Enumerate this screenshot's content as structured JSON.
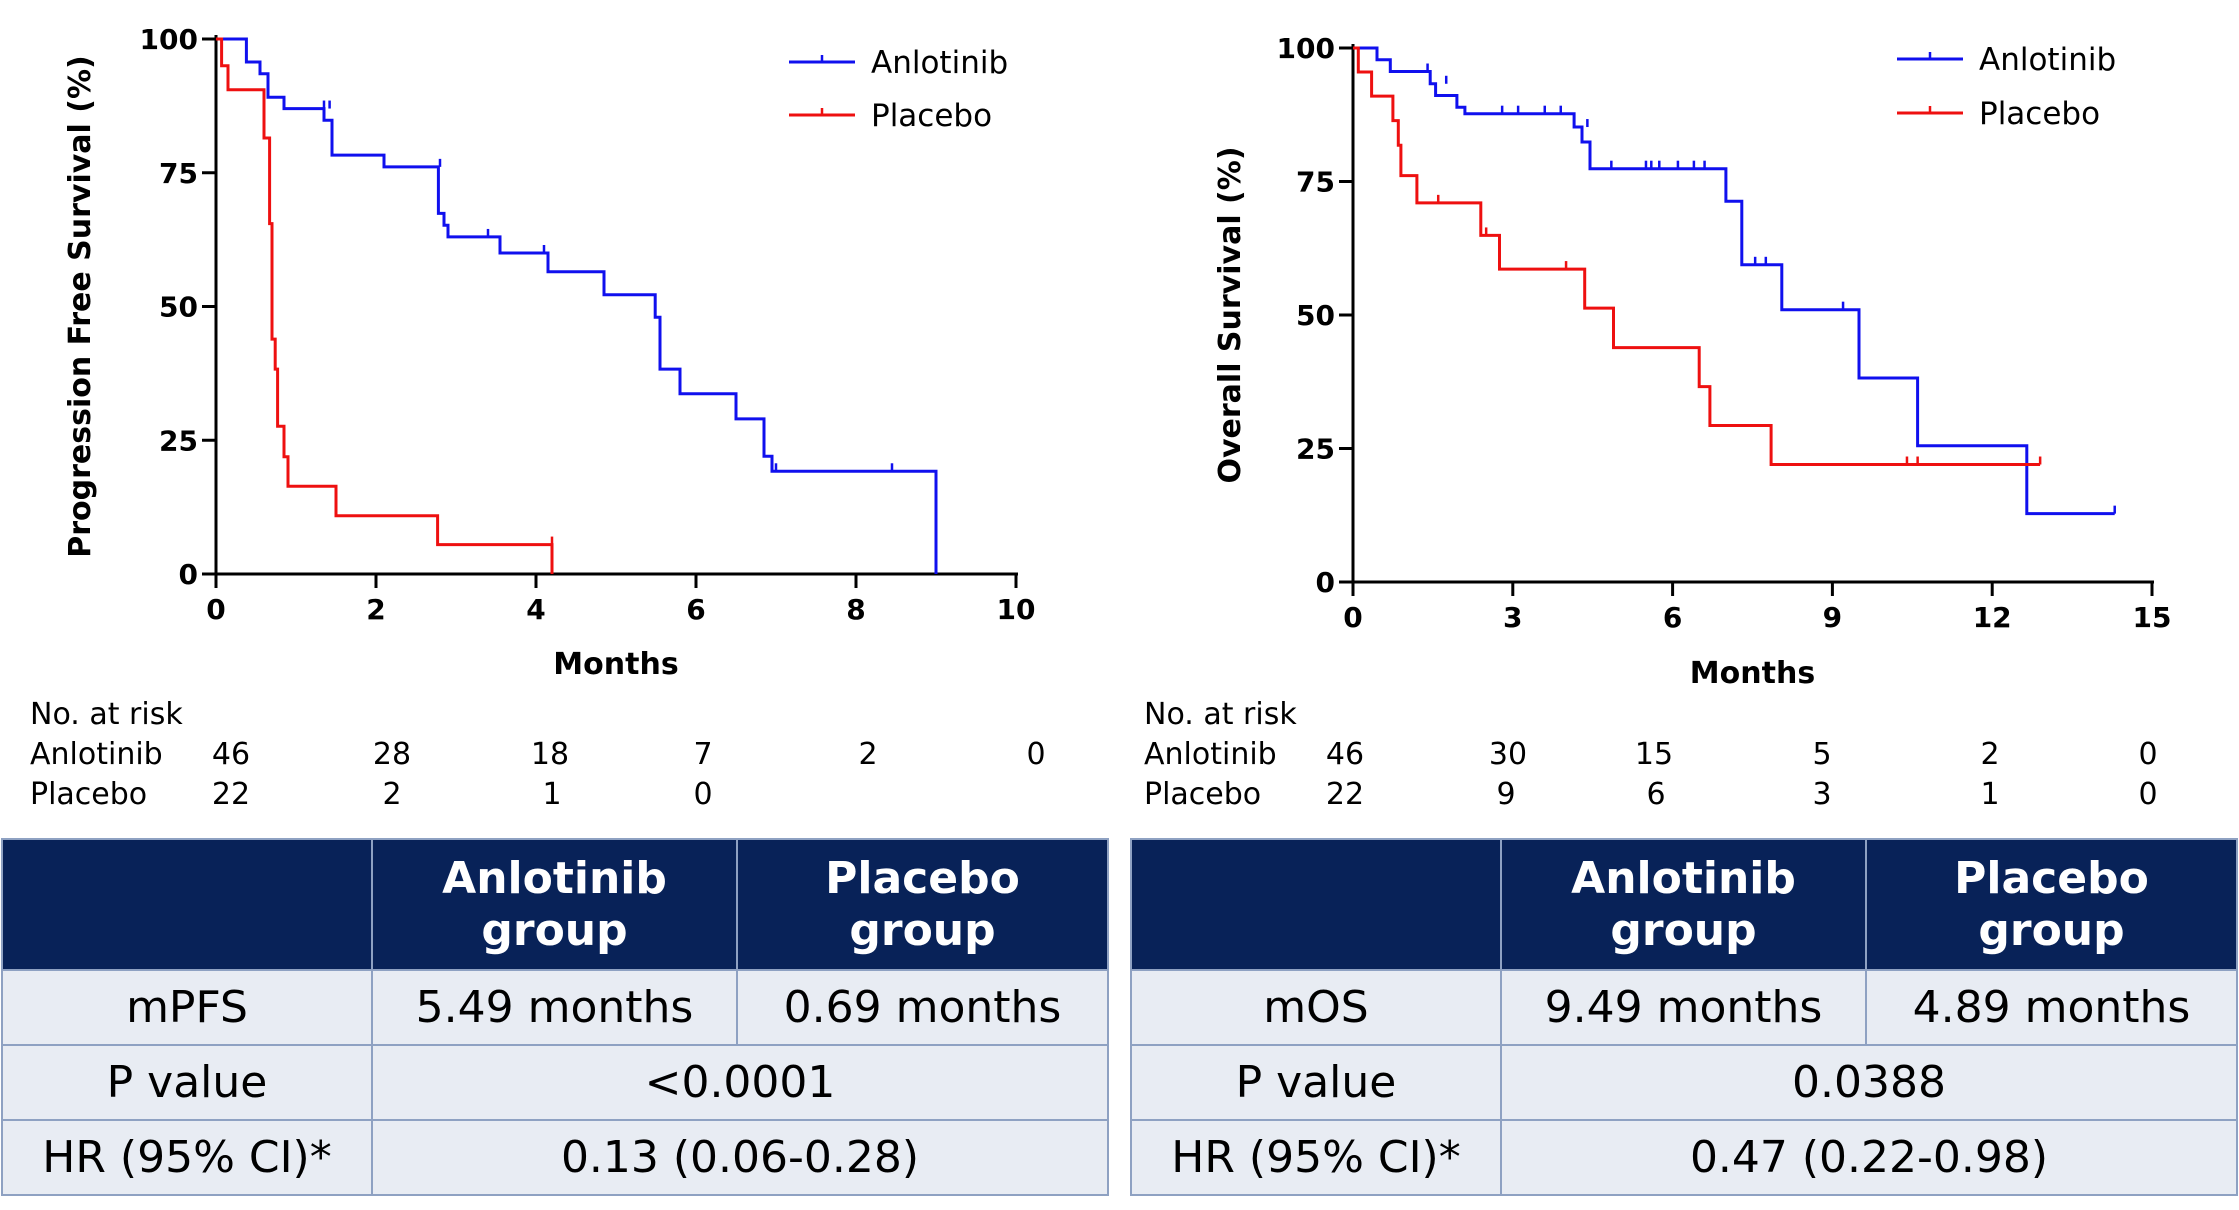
{
  "chart_data": [
    {
      "type": "line",
      "subtype": "kaplan-meier",
      "ylabel": "Progression Free Survival (%)",
      "xlabel": "Months",
      "xlim": [
        0,
        10
      ],
      "ylim": [
        0,
        100
      ],
      "xticks": [
        "0",
        "2",
        "4",
        "6",
        "8",
        "10"
      ],
      "yticks": [
        "0",
        "25",
        "50",
        "75",
        "100"
      ],
      "legend_position": "top-right",
      "series": [
        {
          "name": "Anlotinib",
          "color": "#1010ee",
          "steps": [
            [
              0,
              100
            ],
            [
              0.38,
              100
            ],
            [
              0.38,
              95.7
            ],
            [
              0.55,
              95.7
            ],
            [
              0.55,
              93.5
            ],
            [
              0.65,
              93.5
            ],
            [
              0.65,
              89.1
            ],
            [
              0.85,
              89.1
            ],
            [
              0.85,
              87
            ],
            [
              1.35,
              87
            ],
            [
              1.35,
              84.8
            ],
            [
              1.45,
              84.8
            ],
            [
              1.45,
              78.3
            ],
            [
              2.1,
              78.3
            ],
            [
              2.1,
              76.1
            ],
            [
              2.78,
              76.1
            ],
            [
              2.78,
              67.4
            ],
            [
              2.85,
              67.4
            ],
            [
              2.85,
              65.2
            ],
            [
              2.9,
              65.2
            ],
            [
              2.9,
              63
            ],
            [
              3.55,
              63
            ],
            [
              3.55,
              60
            ],
            [
              4.15,
              60
            ],
            [
              4.15,
              56.5
            ],
            [
              4.85,
              56.5
            ],
            [
              4.85,
              52.2
            ],
            [
              5.49,
              52.2
            ],
            [
              5.49,
              48
            ],
            [
              5.55,
              48
            ],
            [
              5.55,
              38.3
            ],
            [
              5.8,
              38.3
            ],
            [
              5.8,
              33.7
            ],
            [
              6.5,
              33.7
            ],
            [
              6.5,
              29
            ],
            [
              6.85,
              29
            ],
            [
              6.85,
              22
            ],
            [
              6.95,
              22
            ],
            [
              6.95,
              19.2
            ],
            [
              9.0,
              19.2
            ],
            [
              9.0,
              0
            ]
          ],
          "censors": [
            [
              1.35,
              87
            ],
            [
              1.42,
              87
            ],
            [
              2.8,
              76.1
            ],
            [
              3.4,
              63
            ],
            [
              4.1,
              60
            ],
            [
              7.0,
              19.2
            ],
            [
              8.45,
              19.2
            ]
          ]
        },
        {
          "name": "Placebo",
          "color": "#ee1010",
          "steps": [
            [
              0,
              100
            ],
            [
              0.07,
              100
            ],
            [
              0.07,
              95
            ],
            [
              0.15,
              95
            ],
            [
              0.15,
              90.5
            ],
            [
              0.6,
              90.5
            ],
            [
              0.6,
              81.5
            ],
            [
              0.67,
              81.5
            ],
            [
              0.67,
              65.5
            ],
            [
              0.7,
              65.5
            ],
            [
              0.7,
              43.9
            ],
            [
              0.74,
              43.9
            ],
            [
              0.74,
              38.3
            ],
            [
              0.77,
              38.3
            ],
            [
              0.77,
              27.6
            ],
            [
              0.85,
              27.6
            ],
            [
              0.85,
              21.9
            ],
            [
              0.9,
              21.9
            ],
            [
              0.9,
              16.4
            ],
            [
              1.5,
              16.4
            ],
            [
              1.5,
              10.9
            ],
            [
              2.77,
              10.9
            ],
            [
              2.77,
              5.5
            ],
            [
              4.2,
              5.5
            ],
            [
              4.2,
              0
            ]
          ],
          "censors": [
            [
              4.2,
              5.5
            ]
          ]
        }
      ],
      "risk_table": {
        "heading": "No. at risk",
        "times": [
          0,
          2,
          4,
          6,
          8,
          10
        ],
        "rows": [
          {
            "label": "Anlotinib",
            "values": [
              "46",
              "28",
              "18",
              "7",
              "2",
              "0"
            ]
          },
          {
            "label": "Placebo",
            "values": [
              "22",
              "2",
              "1",
              "0",
              "",
              ""
            ]
          }
        ]
      }
    },
    {
      "type": "line",
      "subtype": "kaplan-meier",
      "ylabel": "Overall Survival (%)",
      "xlabel": "Months",
      "xlim": [
        0,
        15
      ],
      "ylim": [
        0,
        100
      ],
      "xticks": [
        "0",
        "3",
        "6",
        "9",
        "12",
        "15"
      ],
      "yticks": [
        "0",
        "25",
        "50",
        "75",
        "100"
      ],
      "legend_position": "top-right",
      "series": [
        {
          "name": "Anlotinib",
          "color": "#1010ee",
          "steps": [
            [
              0,
              100
            ],
            [
              0.45,
              100
            ],
            [
              0.45,
              97.8
            ],
            [
              0.7,
              97.8
            ],
            [
              0.7,
              95.6
            ],
            [
              1.45,
              95.6
            ],
            [
              1.45,
              93.3
            ],
            [
              1.55,
              93.3
            ],
            [
              1.55,
              91.1
            ],
            [
              1.95,
              91.1
            ],
            [
              1.95,
              88.9
            ],
            [
              2.1,
              88.9
            ],
            [
              2.1,
              87.7
            ],
            [
              4.15,
              87.7
            ],
            [
              4.15,
              85.2
            ],
            [
              4.3,
              85.2
            ],
            [
              4.3,
              82.4
            ],
            [
              4.45,
              82.4
            ],
            [
              4.45,
              77.4
            ],
            [
              7.0,
              77.4
            ],
            [
              7.0,
              71.3
            ],
            [
              7.3,
              71.3
            ],
            [
              7.3,
              59.4
            ],
            [
              8.05,
              59.4
            ],
            [
              8.05,
              51
            ],
            [
              9.5,
              51
            ],
            [
              9.5,
              38.2
            ],
            [
              10.6,
              38.2
            ],
            [
              10.6,
              25.5
            ],
            [
              12.65,
              25.5
            ],
            [
              12.65,
              12.8
            ],
            [
              14.3,
              12.8
            ]
          ],
          "censors": [
            [
              1.4,
              95.6
            ],
            [
              1.75,
              93.3
            ],
            [
              2.8,
              87.7
            ],
            [
              3.1,
              87.7
            ],
            [
              3.6,
              87.7
            ],
            [
              3.9,
              87.7
            ],
            [
              4.4,
              85.2
            ],
            [
              4.85,
              77.4
            ],
            [
              5.5,
              77.4
            ],
            [
              5.6,
              77.4
            ],
            [
              5.75,
              77.4
            ],
            [
              6.1,
              77.4
            ],
            [
              6.4,
              77.4
            ],
            [
              6.6,
              77.4
            ],
            [
              7.55,
              59.4
            ],
            [
              7.75,
              59.4
            ],
            [
              9.2,
              51
            ],
            [
              14.3,
              12.8
            ]
          ]
        },
        {
          "name": "Placebo",
          "color": "#ee1010",
          "steps": [
            [
              0,
              100
            ],
            [
              0.1,
              100
            ],
            [
              0.1,
              95.5
            ],
            [
              0.35,
              95.5
            ],
            [
              0.35,
              91
            ],
            [
              0.75,
              91
            ],
            [
              0.75,
              86.4
            ],
            [
              0.85,
              86.4
            ],
            [
              0.85,
              81.8
            ],
            [
              0.9,
              81.8
            ],
            [
              0.9,
              76.1
            ],
            [
              1.2,
              76.1
            ],
            [
              1.2,
              71
            ],
            [
              2.4,
              71
            ],
            [
              2.4,
              64.9
            ],
            [
              2.75,
              64.9
            ],
            [
              2.75,
              58.6
            ],
            [
              4.35,
              58.6
            ],
            [
              4.35,
              51.3
            ],
            [
              4.89,
              51.3
            ],
            [
              4.89,
              43.9
            ],
            [
              6.5,
              43.9
            ],
            [
              6.5,
              36.6
            ],
            [
              6.7,
              36.6
            ],
            [
              6.7,
              29.3
            ],
            [
              7.85,
              29.3
            ],
            [
              7.85,
              22
            ],
            [
              12.9,
              22
            ]
          ],
          "censors": [
            [
              1.6,
              71
            ],
            [
              2.5,
              64.9
            ],
            [
              4.0,
              58.6
            ],
            [
              10.4,
              22
            ],
            [
              10.6,
              22
            ],
            [
              12.9,
              22
            ]
          ]
        }
      ],
      "risk_table": {
        "heading": "No. at risk",
        "times": [
          0,
          3,
          6,
          9,
          12,
          15
        ],
        "rows": [
          {
            "label": "Anlotinib",
            "values": [
              "46",
              "30",
              "15",
              "5",
              "2",
              "0"
            ]
          },
          {
            "label": "Placebo",
            "values": [
              "22",
              "9",
              "6",
              "3",
              "1",
              "0"
            ]
          }
        ]
      }
    }
  ],
  "tables": [
    {
      "header": [
        "",
        "Anlotinib group",
        "Placebo group"
      ],
      "metric_label": "mPFS",
      "anlotinib_value": "5.49 months",
      "placebo_value": "0.69 months",
      "p_label": "P value",
      "p_value": "<0.0001",
      "hr_label": "HR (95% CI)*",
      "hr_value": "0.13 (0.06-0.28)"
    },
    {
      "header": [
        "",
        "Anlotinib group",
        "Placebo group"
      ],
      "metric_label": "mOS",
      "anlotinib_value": "9.49 months",
      "placebo_value": "4.89 months",
      "p_label": "P value",
      "p_value": "0.0388",
      "hr_label": "HR (95% CI)*",
      "hr_value": "0.47 (0.22-0.98)"
    }
  ]
}
